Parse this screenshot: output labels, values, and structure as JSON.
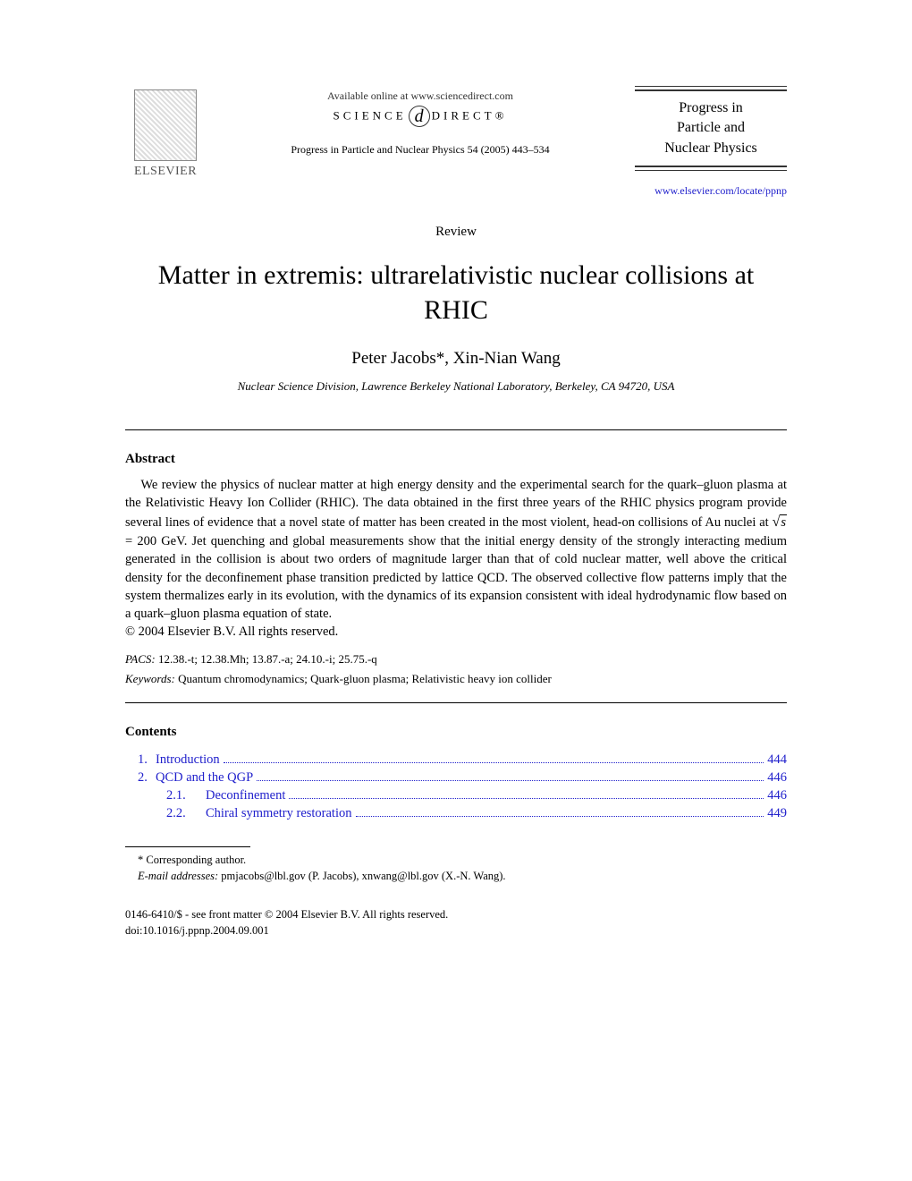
{
  "header": {
    "publisher": "ELSEVIER",
    "available_online": "Available online at www.sciencedirect.com",
    "sciencedirect_pre": "SCIENCE",
    "sciencedirect_d": "d",
    "sciencedirect_post": "DIRECT®",
    "journal_ref": "Progress in Particle and Nuclear Physics 54 (2005) 443–534",
    "journal_name_line1": "Progress in",
    "journal_name_line2": "Particle and",
    "journal_name_line3": "Nuclear Physics",
    "journal_url": "www.elsevier.com/locate/ppnp"
  },
  "article": {
    "type": "Review",
    "title": "Matter in extremis: ultrarelativistic nuclear collisions at RHIC",
    "authors": "Peter Jacobs*, Xin-Nian Wang",
    "affiliation": "Nuclear Science Division, Lawrence Berkeley National Laboratory, Berkeley, CA 94720, USA"
  },
  "abstract": {
    "heading": "Abstract",
    "text_pre": "We review the physics of nuclear matter at high energy density and the experimental search for the quark–gluon plasma at the Relativistic Heavy Ion Collider (RHIC). The data obtained in the first three years of the RHIC physics program provide several lines of evidence that a novel state of matter has been created in the most violent, head-on collisions of Au nuclei at ",
    "sqrt_arg": "s",
    "eq_val": " = 200 GeV. ",
    "text_post": "Jet quenching and global measurements show that the initial energy density of the strongly interacting medium generated in the collision is about two orders of magnitude larger than that of cold nuclear matter, well above the critical density for the deconfinement phase transition predicted by lattice QCD. The observed collective flow patterns imply that the system thermalizes early in its evolution, with the dynamics of its expansion consistent with ideal hydrodynamic flow based on a quark–gluon plasma equation of state.",
    "copyright": "© 2004 Elsevier B.V. All rights reserved."
  },
  "pacs": {
    "label": "PACS:",
    "value": " 12.38.-t; 12.38.Mh; 13.87.-a; 24.10.-i; 25.75.-q"
  },
  "keywords": {
    "label": "Keywords:",
    "value": " Quantum chromodynamics; Quark-gluon plasma; Relativistic heavy ion collider"
  },
  "contents": {
    "heading": "Contents",
    "items": [
      {
        "num": "1.",
        "text": "Introduction",
        "page": "444"
      },
      {
        "num": "2.",
        "text": "QCD and the QGP",
        "page": "446"
      }
    ],
    "subitems": [
      {
        "num": "2.1.",
        "text": "Deconfinement",
        "page": "446"
      },
      {
        "num": "2.2.",
        "text": "Chiral symmetry restoration",
        "page": "449"
      }
    ]
  },
  "footnote": {
    "corr": "* Corresponding author.",
    "email_label": "E-mail addresses:",
    "emails": " pmjacobs@lbl.gov (P. Jacobs), xnwang@lbl.gov (X.-N. Wang)."
  },
  "footer": {
    "line1": "0146-6410/$ - see front matter © 2004 Elsevier B.V. All rights reserved.",
    "line2": "doi:10.1016/j.ppnp.2004.09.001"
  }
}
